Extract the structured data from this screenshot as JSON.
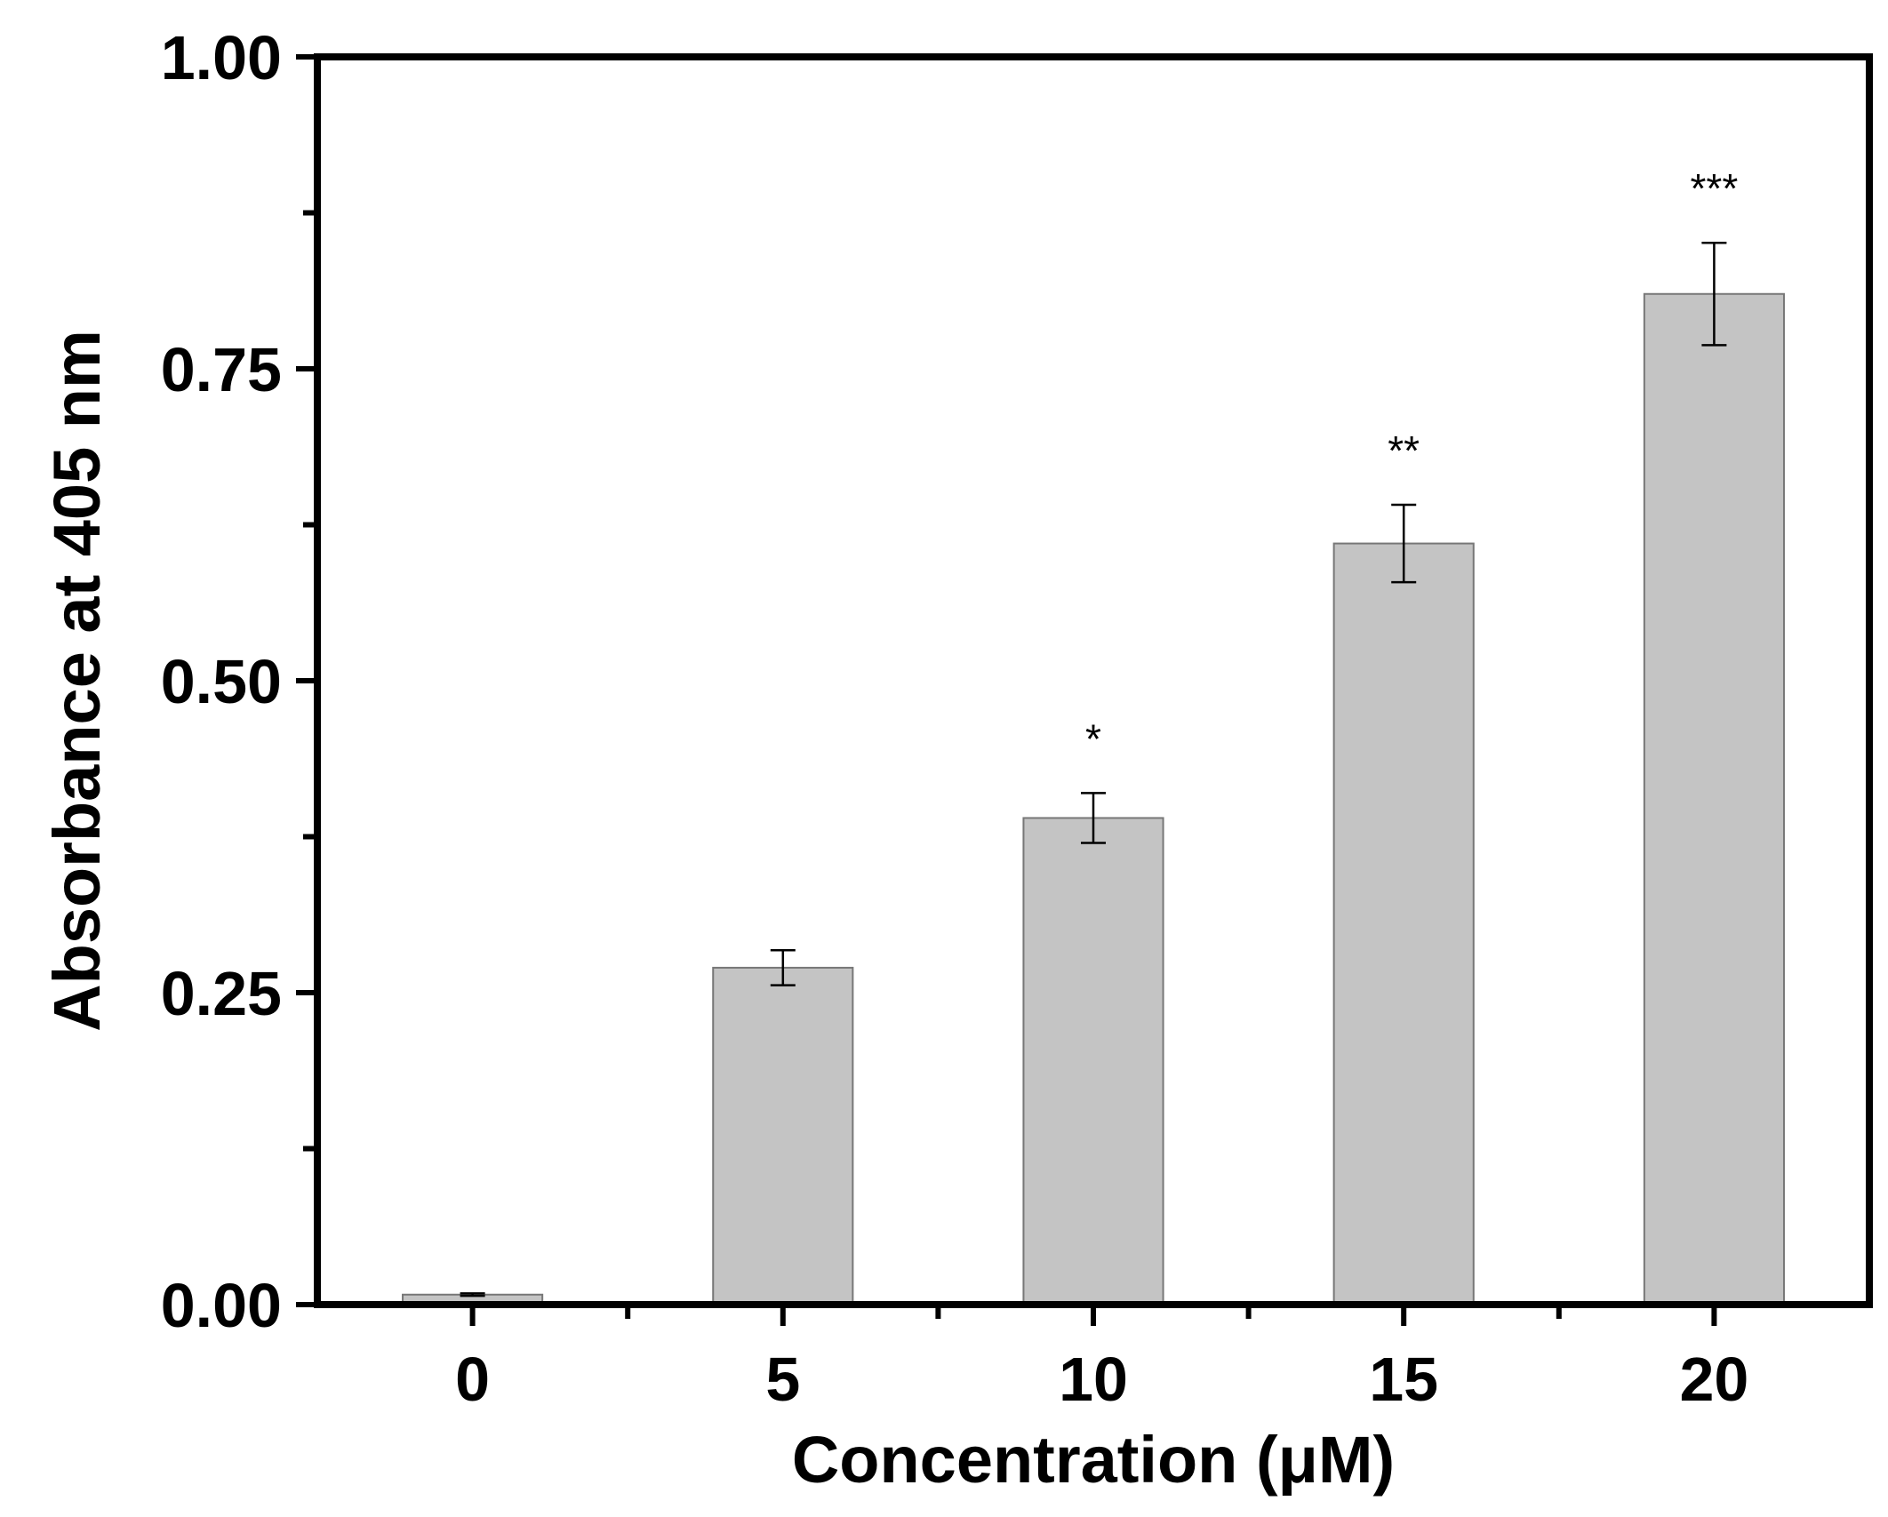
{
  "chart_data": {
    "type": "bar",
    "title": "",
    "xlabel": "Concentration (μM)",
    "ylabel": "Absorbance at 405 nm",
    "categories": [
      "0",
      "5",
      "10",
      "15",
      "20"
    ],
    "values": [
      0.008,
      0.27,
      0.39,
      0.61,
      0.81
    ],
    "errors": [
      0.001,
      0.014,
      0.02,
      0.031,
      0.041
    ],
    "significance": [
      "",
      "",
      "*",
      "**",
      "***"
    ],
    "ylim": [
      0,
      1.0
    ],
    "yticks": [
      "0.00",
      "0.25",
      "0.50",
      "0.75",
      "1.00"
    ],
    "yminor_step": 0.125,
    "grid": false,
    "bar_color": "#c4c4c4",
    "bar_edge_color": "#777777"
  }
}
